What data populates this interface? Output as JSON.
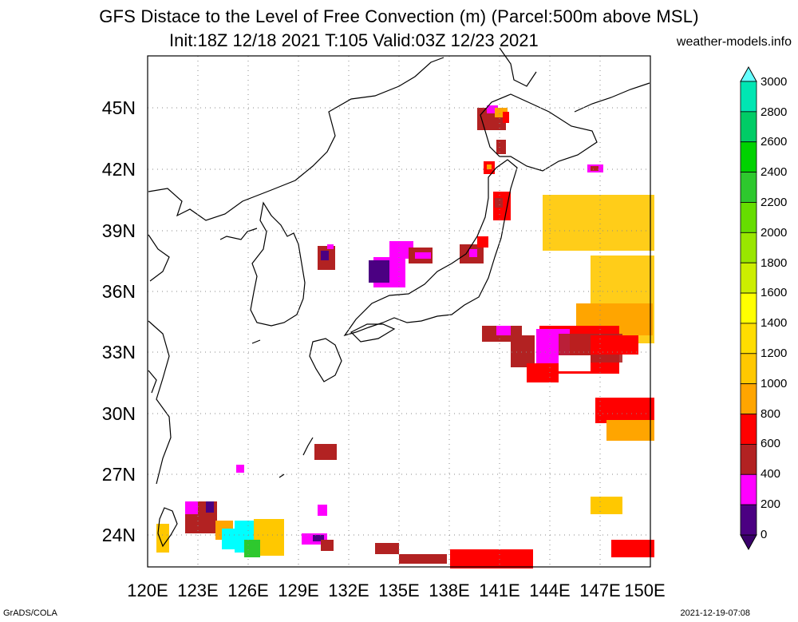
{
  "title": {
    "line1": "GFS Distace to the Level of Free Convection (m) (Parcel:500m above MSL)",
    "line2": "Init:18Z 12/18 2021 T:105 Valid:03Z 12/23 2021",
    "site": "weather-models.info"
  },
  "footer": {
    "left": "GrADS/COLA",
    "right": "2021-12-19-07:08"
  },
  "map": {
    "lon_range": [
      120,
      150
    ],
    "lat_range": [
      22.5,
      48.5
    ],
    "lon_labels": [
      "120E",
      "123E",
      "126E",
      "129E",
      "132E",
      "135E",
      "138E",
      "141E",
      "144E",
      "147E",
      "150E"
    ],
    "lat_labels": [
      "45N",
      "42N",
      "39N",
      "36N",
      "33N",
      "30N",
      "27N",
      "24N"
    ]
  },
  "colorbar": {
    "labels": [
      "3000",
      "2800",
      "2600",
      "2400",
      "2200",
      "2000",
      "1800",
      "1600",
      "1400",
      "1200",
      "1000",
      "800",
      "600",
      "400",
      "200",
      "0"
    ],
    "colors": [
      "#00ffff",
      "#00e6b3",
      "#00cc66",
      "#00d200",
      "#2ec82e",
      "#66dd00",
      "#99e600",
      "#ccee00",
      "#ffff00",
      "#ffdd00",
      "#ffc800",
      "#ffa500",
      "#ff0000",
      "#b22222",
      "#ff00ff",
      "#4b0082"
    ],
    "top_arrow_color": "#66ffff",
    "bottom_arrow_color": "#3a006b"
  }
}
